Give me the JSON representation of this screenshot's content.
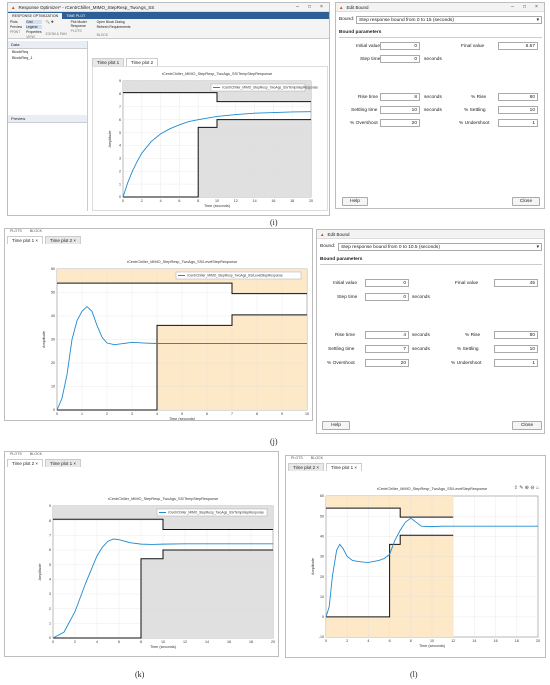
{
  "panel_i": {
    "window_title": "Response Optimizer* - rCentrChiller_MIMO_StepResp_TwoAgs_SS",
    "ribbon_tabs": [
      "RESPONSE OPTIMIZATION",
      "TIME PLOT"
    ],
    "ribbon_items": {
      "plots": "Plots",
      "preview": "Preview",
      "grid": "Grid",
      "legend": "Legend",
      "properties": "Properties",
      "plot_model": "Plot Model Response",
      "open_block": "Open Block Dialog",
      "refresh": "Refresh Requirements"
    },
    "ribbon_groups": [
      "PRINT",
      "VIEW",
      "ZOOM & PAN",
      "PLOTS",
      "BLOCK"
    ],
    "tabs": [
      "Time plot 1",
      "Time plot 2"
    ],
    "data_header": "Data",
    "data_items": [
      "BlockReq",
      "BlockReq_1"
    ],
    "preview_header": "Preview",
    "plot_title": "rCentrChiller_MIMO_StepResp_TwoAgs_SS/TempStepResponse",
    "legend": "rCentrChiller_MIMO_StepResp_TwoAgs_SS/TempStepResponse",
    "xlabel": "Time (seconds)",
    "ylabel": "Amplitude",
    "caption": "(i)"
  },
  "bound_i": {
    "title": "Edit Bound",
    "bound_label": "Bound:",
    "bound_value": "Step response bound from 0 to 15 (seconds)",
    "section": "Bound parameters",
    "initial_value_label": "Initial value",
    "initial_value": "0",
    "final_value_label": "Final value",
    "final_value": "6.67",
    "step_time_label": "Step time",
    "step_time": "0",
    "step_unit": "seconds",
    "rise_time_label": "Rise time",
    "rise_time": "8",
    "rise_unit": "seconds",
    "pct_rise_label": "% Rise",
    "pct_rise": "80",
    "settling_time_label": "Settling time",
    "settling_time": "10",
    "settling_unit": "seconds",
    "pct_settling_label": "% Settling",
    "pct_settling": "10",
    "overshoot_label": "% Overshoot",
    "overshoot": "20",
    "undershoot_label": "% Undershoot",
    "undershoot": "1",
    "help": "Help",
    "close": "Close"
  },
  "panel_j": {
    "strip_tabs": [
      "PLOTS",
      "BLOCK"
    ],
    "tabs": [
      "Time plot 1",
      "Time plot 2"
    ],
    "plot_title": "rCentrChiller_MIMO_StepResp_TwoAgs_SS/LevelStepResponse",
    "legend": "rCentrChiller_MIMO_StepResp_TwoAgs_SS/LevelStepResponse",
    "xlabel": "Time (seconds)",
    "ylabel": "Amplitude",
    "caption": "(j)"
  },
  "bound_j": {
    "title": "Edit Bound",
    "bound_label": "Bound:",
    "bound_value": "Step response bound from 0 to 10.5 (seconds)",
    "section": "Bound parameters",
    "initial_value_label": "Initial value",
    "initial_value": "0",
    "final_value_label": "Final value",
    "final_value": "45",
    "step_time_label": "Step time",
    "step_time": "0",
    "step_unit": "seconds",
    "rise_time_label": "Rise time",
    "rise_time": "4",
    "rise_unit": "seconds",
    "pct_rise_label": "% Rise",
    "pct_rise": "80",
    "settling_time_label": "Settling time",
    "settling_time": "7",
    "settling_unit": "seconds",
    "pct_settling_label": "% Settling",
    "pct_settling": "10",
    "overshoot_label": "% Overshoot",
    "overshoot": "20",
    "undershoot_label": "% Undershoot",
    "undershoot": "1",
    "help": "Help",
    "close": "Close"
  },
  "panel_k": {
    "strip_tabs": [
      "PLOTS",
      "BLOCK"
    ],
    "tabs": [
      "Time plot 2",
      "Time plot 1"
    ],
    "plot_title": "rCentrChiller_MIMO_StepResp_TwoAgs_SS/TempStepResponse",
    "legend": "rCentrChiller_MIMO_StepResp_TwoAgs_SS/TempStepResponse",
    "xlabel": "Time (seconds)",
    "ylabel": "Amplitude",
    "caption": "(k)"
  },
  "panel_l": {
    "strip_tabs": [
      "PLOTS",
      "BLOCK"
    ],
    "tabs": [
      "Time plot 2",
      "Time plot 1"
    ],
    "plot_title": "rCentrChiller_MIMO_StepResp_TwoAgs_SS/LevelStepResponse",
    "xlabel": "Time (seconds)",
    "ylabel": "Amplitude",
    "caption": "(l)"
  },
  "colors": {
    "response": "#1f8ad0",
    "infeasible_gray": "#e0e0e0",
    "infeasible_orange": "#fde9c8",
    "bound": "#111111",
    "ribbon": "#2d5f96"
  },
  "chart_data": [
    {
      "id": "i",
      "type": "line",
      "x_ticks": [
        "0",
        "2",
        "4",
        "6",
        "8",
        "10",
        "12",
        "14",
        "16",
        "18",
        "20"
      ],
      "y_ticks": [
        "0",
        "1",
        "2",
        "3",
        "4",
        "5",
        "6",
        "7",
        "8",
        "9"
      ],
      "xlim": [
        0,
        20
      ],
      "ylim": [
        0,
        9
      ],
      "series": [
        {
          "x": [
            0,
            0.5,
            1,
            1.5,
            2,
            3,
            4,
            5,
            6,
            7,
            8,
            10,
            12,
            14,
            16,
            18,
            20
          ],
          "y": [
            0,
            1.1,
            2.0,
            2.75,
            3.4,
            4.3,
            4.9,
            5.3,
            5.6,
            5.85,
            6.0,
            6.25,
            6.4,
            6.5,
            6.55,
            6.6,
            6.62
          ]
        }
      ],
      "bounds": {
        "upper": [
          [
            0,
            8.1
          ],
          [
            10,
            8.1
          ],
          [
            10,
            7.4
          ],
          [
            20,
            7.4
          ]
        ],
        "lower": [
          [
            0,
            0
          ],
          [
            8,
            0
          ],
          [
            8,
            5.4
          ],
          [
            10,
            5.4
          ],
          [
            10,
            6.0
          ],
          [
            20,
            6.0
          ]
        ]
      }
    },
    {
      "id": "j",
      "type": "line",
      "x_ticks": [
        "0",
        "1",
        "2",
        "3",
        "4",
        "5",
        "6",
        "7",
        "8",
        "9",
        "10"
      ],
      "y_ticks": [
        "0",
        "10",
        "20",
        "30",
        "40",
        "50",
        "60"
      ],
      "xlim": [
        0,
        10
      ],
      "ylim": [
        0,
        60
      ],
      "series": [
        {
          "x": [
            0,
            0.2,
            0.4,
            0.6,
            0.8,
            1.0,
            1.2,
            1.4,
            1.6,
            1.8,
            2.0,
            2.3,
            2.6,
            3.0,
            3.5,
            4,
            5,
            6,
            7,
            8,
            9,
            10
          ],
          "y": [
            0,
            5,
            15,
            30,
            38,
            42,
            44,
            42,
            36,
            31,
            28.5,
            27.8,
            28.2,
            28.8,
            28.5,
            28.3,
            28.3,
            28.3,
            28.3,
            28.3,
            28.3,
            28.3
          ]
        }
      ],
      "bounds": {
        "upper": [
          [
            0,
            54
          ],
          [
            7,
            54
          ],
          [
            7,
            49.5
          ],
          [
            10,
            49.5
          ]
        ],
        "lower": [
          [
            0,
            0
          ],
          [
            4,
            0
          ],
          [
            4,
            36
          ],
          [
            7,
            36
          ],
          [
            7,
            40.5
          ],
          [
            10,
            40.5
          ]
        ]
      }
    },
    {
      "id": "k",
      "type": "line",
      "x_ticks": [
        "0",
        "2",
        "4",
        "6",
        "8",
        "10",
        "12",
        "14",
        "16",
        "18",
        "20"
      ],
      "y_ticks": [
        "0",
        "1",
        "2",
        "3",
        "4",
        "5",
        "6",
        "7",
        "8",
        "9"
      ],
      "xlim": [
        0,
        20
      ],
      "ylim": [
        0,
        9
      ],
      "series": [
        {
          "x": [
            0,
            1,
            2,
            3,
            4,
            4.5,
            5,
            5.5,
            6,
            7,
            8,
            9,
            10,
            12,
            14,
            16,
            18,
            20
          ],
          "y": [
            0,
            0.4,
            1.8,
            3.8,
            5.6,
            6.2,
            6.6,
            6.75,
            6.7,
            6.5,
            6.4,
            6.38,
            6.4,
            6.42,
            6.42,
            6.42,
            6.42,
            6.42
          ]
        }
      ],
      "bounds": {
        "upper": [
          [
            0,
            8.1
          ],
          [
            10,
            8.1
          ],
          [
            10,
            7.4
          ],
          [
            20,
            7.4
          ]
        ],
        "lower": [
          [
            0,
            0
          ],
          [
            8,
            0
          ],
          [
            8,
            5.4
          ],
          [
            10,
            5.4
          ],
          [
            10,
            6.0
          ],
          [
            20,
            6.0
          ]
        ]
      }
    },
    {
      "id": "l",
      "type": "line",
      "x_ticks": [
        "0",
        "2",
        "4",
        "6",
        "8",
        "10",
        "12",
        "14",
        "16",
        "18",
        "20"
      ],
      "y_ticks": [
        "-10",
        "0",
        "10",
        "20",
        "30",
        "40",
        "50",
        "60"
      ],
      "xlim": [
        0,
        20
      ],
      "ylim": [
        -10,
        60
      ],
      "series": [
        {
          "x": [
            0,
            0.3,
            0.6,
            1,
            1.3,
            1.6,
            2,
            2.5,
            3,
            3.5,
            4,
            4.5,
            5,
            5.5,
            6,
            6.5,
            7,
            7.5,
            8,
            8.5,
            9,
            10,
            11,
            12,
            14,
            16,
            18,
            20
          ],
          "y": [
            0,
            5,
            20,
            33,
            36,
            34,
            30,
            28,
            27.5,
            27.2,
            27,
            27.5,
            28,
            29,
            31,
            38,
            43,
            47,
            49,
            47,
            45,
            44.8,
            45,
            45,
            45,
            45,
            45,
            45
          ]
        }
      ],
      "bounds": {
        "upper": [
          [
            0,
            54
          ],
          [
            7,
            54
          ],
          [
            7,
            49.5
          ],
          [
            12,
            49.5
          ]
        ],
        "lower": [
          [
            0,
            0
          ],
          [
            6,
            0
          ],
          [
            6,
            36
          ],
          [
            7,
            36
          ],
          [
            7,
            40.5
          ],
          [
            12,
            40.5
          ]
        ]
      }
    }
  ]
}
